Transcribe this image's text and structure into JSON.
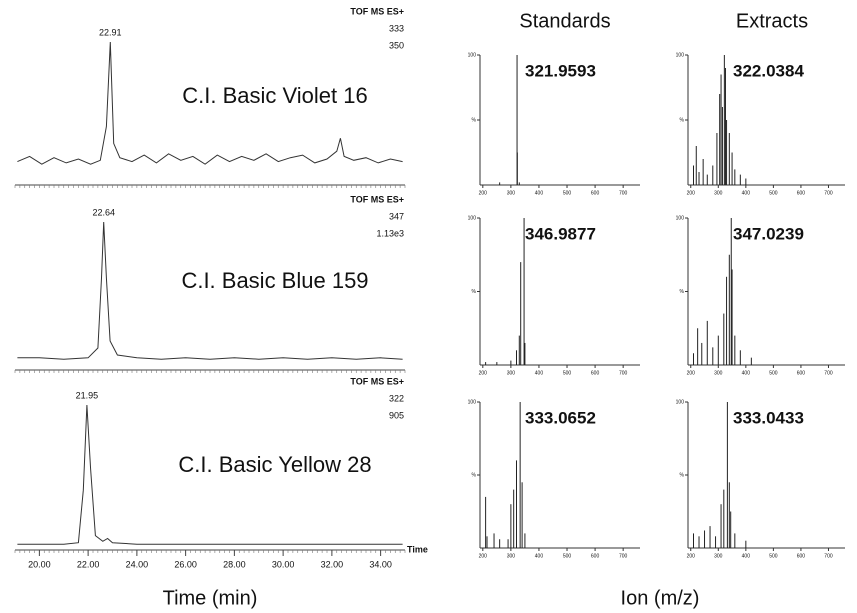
{
  "figure": {
    "headers": [
      "Standards",
      "Extracts"
    ],
    "x_titles": [
      "Time (min)",
      "Ion (m/z)"
    ]
  },
  "chart_data": [
    {
      "type": "line",
      "title": "C.I. Basic Violet 16",
      "annotations": [
        "TOF MS ES+",
        "333",
        "350"
      ],
      "peak_label": "22.91",
      "x": [
        19.1,
        19.6,
        20.1,
        20.6,
        21.1,
        21.6,
        22.1,
        22.5,
        22.75,
        22.91,
        23.05,
        23.3,
        23.8,
        24.3,
        24.8,
        25.3,
        25.8,
        26.3,
        26.8,
        27.3,
        27.8,
        28.3,
        28.8,
        29.3,
        29.8,
        30.3,
        30.8,
        31.3,
        31.8,
        32.2,
        32.35,
        32.5,
        32.9,
        33.4,
        33.9,
        34.4,
        34.9
      ],
      "values": [
        8,
        12,
        6,
        11,
        7,
        10,
        6,
        9,
        35,
        100,
        22,
        11,
        8,
        13,
        7,
        14,
        9,
        12,
        6,
        13,
        8,
        12,
        9,
        14,
        8,
        11,
        13,
        7,
        10,
        16,
        26,
        12,
        9,
        11,
        7,
        10,
        8
      ],
      "xlim": [
        19,
        35
      ],
      "ylim": [
        0,
        100
      ],
      "color": "#333333"
    },
    {
      "type": "line",
      "title": "C.I. Basic Blue 159",
      "annotations": [
        "TOF MS ES+",
        "347",
        "1.13e3"
      ],
      "peak_label": "22.64",
      "x": [
        19.1,
        20,
        21,
        22,
        22.4,
        22.55,
        22.64,
        22.75,
        22.9,
        23.2,
        24,
        25,
        26,
        27,
        28,
        29,
        30,
        31,
        32,
        33,
        34,
        34.9
      ],
      "values": [
        3,
        3,
        2,
        3,
        10,
        60,
        100,
        60,
        15,
        5,
        3,
        2,
        3,
        2,
        3,
        2,
        3,
        2,
        3,
        2,
        3,
        2
      ],
      "xlim": [
        19,
        35
      ],
      "ylim": [
        0,
        100
      ],
      "color": "#333333"
    },
    {
      "type": "line",
      "title": "C.I. Basic Yellow 28",
      "annotations": [
        "TOF MS ES+",
        "322",
        "905"
      ],
      "peak_label": "21.95",
      "axis_end_label": "Time",
      "x": [
        19.1,
        20,
        21,
        21.6,
        21.8,
        21.95,
        22.1,
        22.3,
        22.6,
        22.8,
        23,
        24,
        25,
        26,
        27,
        28,
        29,
        30,
        31,
        32,
        33,
        34,
        34.9
      ],
      "values": [
        2,
        2,
        2,
        3,
        40,
        100,
        55,
        8,
        4,
        6,
        3,
        2,
        2,
        2,
        2,
        2,
        2,
        2,
        2,
        2,
        2,
        2,
        2
      ],
      "xlim": [
        19,
        35
      ],
      "ylim": [
        0,
        100
      ],
      "color": "#333333",
      "xticks": [
        {
          "value": 20,
          "label": "20.00"
        },
        {
          "value": 22,
          "label": "22.00"
        },
        {
          "value": 24,
          "label": "24.00"
        },
        {
          "value": 26,
          "label": "26.00"
        },
        {
          "value": 28,
          "label": "28.00"
        },
        {
          "value": 30,
          "label": "30.00"
        },
        {
          "value": 32,
          "label": "32.00"
        },
        {
          "value": 34,
          "label": "34.00"
        }
      ]
    },
    {
      "type": "bar",
      "annotation": "321.9593",
      "x": [
        260,
        322,
        323,
        330
      ],
      "values": [
        2,
        100,
        25,
        2
      ],
      "xlim": [
        190,
        760
      ],
      "ylim": [
        0,
        100
      ],
      "xticks": [
        200,
        300,
        400,
        500,
        600,
        700
      ],
      "yticks": [
        100,
        {
          "value": 50,
          "label": "%"
        }
      ],
      "color": "#222222"
    },
    {
      "type": "bar",
      "annotation": "322.0384",
      "x": [
        210,
        220,
        230,
        245,
        260,
        280,
        295,
        305,
        310,
        315,
        322,
        326,
        330,
        340,
        350,
        360,
        380,
        400
      ],
      "values": [
        15,
        30,
        10,
        20,
        8,
        15,
        40,
        70,
        85,
        60,
        100,
        90,
        50,
        40,
        25,
        12,
        8,
        5
      ],
      "xlim": [
        190,
        760
      ],
      "ylim": [
        0,
        100
      ],
      "xticks": [
        200,
        300,
        400,
        500,
        600,
        700
      ],
      "yticks": [
        100,
        {
          "value": 50,
          "label": "%"
        }
      ],
      "color": "#222222"
    },
    {
      "type": "bar",
      "annotation": "346.9877",
      "x": [
        210,
        250,
        300,
        320,
        330,
        335,
        347,
        350
      ],
      "values": [
        2,
        2,
        3,
        10,
        20,
        70,
        100,
        15
      ],
      "xlim": [
        190,
        760
      ],
      "ylim": [
        0,
        100
      ],
      "xticks": [
        200,
        300,
        400,
        500,
        600,
        700
      ],
      "yticks": [
        100,
        {
          "value": 50,
          "label": "%"
        }
      ],
      "color": "#222222"
    },
    {
      "type": "bar",
      "annotation": "347.0239",
      "x": [
        210,
        225,
        240,
        260,
        280,
        300,
        320,
        330,
        340,
        347,
        350,
        360,
        380,
        420
      ],
      "values": [
        8,
        25,
        15,
        30,
        12,
        20,
        35,
        60,
        75,
        100,
        65,
        20,
        10,
        5
      ],
      "xlim": [
        190,
        760
      ],
      "ylim": [
        0,
        100
      ],
      "xticks": [
        200,
        300,
        400,
        500,
        600,
        700
      ],
      "yticks": [
        100,
        {
          "value": 50,
          "label": "%"
        }
      ],
      "color": "#222222"
    },
    {
      "type": "bar",
      "annotation": "333.0652",
      "x": [
        210,
        215,
        240,
        260,
        290,
        300,
        310,
        320,
        333,
        340,
        350
      ],
      "values": [
        35,
        8,
        10,
        6,
        6,
        30,
        40,
        60,
        100,
        45,
        10
      ],
      "xlim": [
        190,
        760
      ],
      "ylim": [
        0,
        100
      ],
      "xticks": [
        200,
        300,
        400,
        500,
        600,
        700
      ],
      "yticks": [
        100,
        {
          "value": 50,
          "label": "%"
        }
      ],
      "color": "#222222"
    },
    {
      "type": "bar",
      "annotation": "333.0433",
      "x": [
        210,
        230,
        250,
        270,
        290,
        310,
        320,
        333,
        340,
        345,
        360,
        400
      ],
      "values": [
        10,
        8,
        12,
        15,
        8,
        30,
        40,
        100,
        45,
        25,
        10,
        5
      ],
      "xlim": [
        190,
        760
      ],
      "ylim": [
        0,
        100
      ],
      "xticks": [
        200,
        300,
        400,
        500,
        600,
        700
      ],
      "yticks": [
        100,
        {
          "value": 50,
          "label": "%"
        }
      ],
      "color": "#222222"
    }
  ]
}
